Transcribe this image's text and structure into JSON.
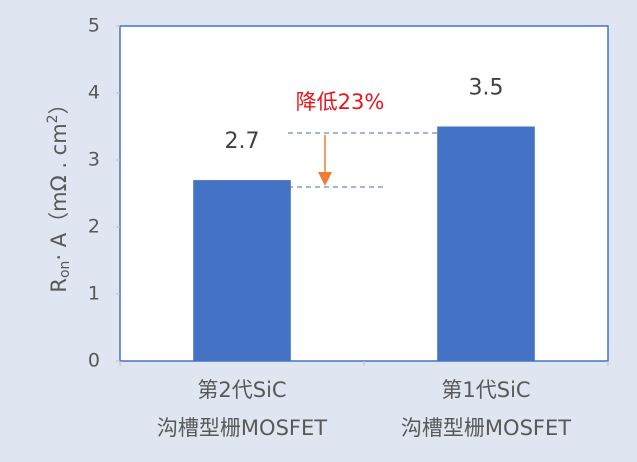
{
  "chart_data": {
    "type": "bar",
    "categories": [
      [
        "第2代SiC",
        "沟槽型栅MOSFET"
      ],
      [
        "第1代SiC",
        "沟槽型栅MOSFET"
      ]
    ],
    "values": [
      2.7,
      3.5
    ],
    "color": "#4472c4",
    "ylim": [
      0,
      5
    ],
    "yticks": [
      0,
      1,
      2,
      3,
      4,
      5
    ],
    "ylabel": {
      "main": "R",
      "sub": "on",
      "rest": "· A（mΩ . cm",
      "sup": "2",
      "end": "）"
    },
    "annotation": "降低23%",
    "grid": false
  }
}
